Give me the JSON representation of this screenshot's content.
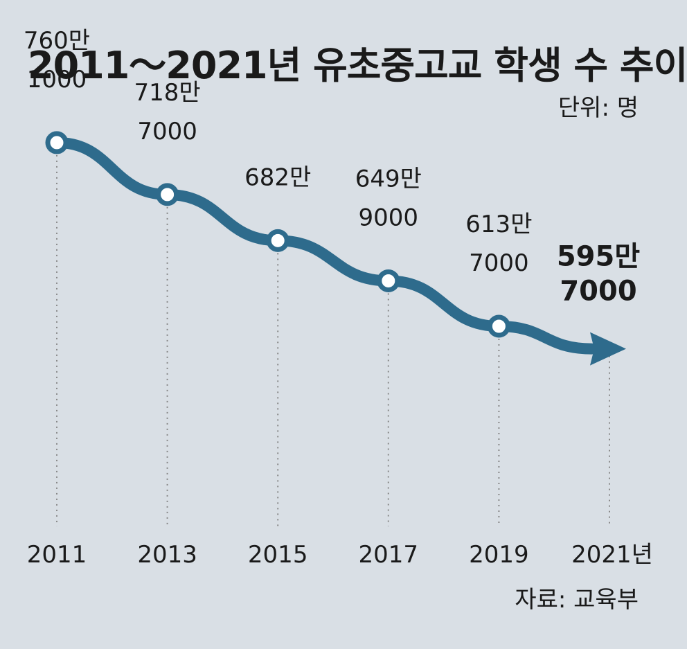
{
  "title": "2011～2021년 유초중고교 학생 수 추이",
  "unit": "단위: 명",
  "source": "자료: 교육부",
  "colors": {
    "background": "#d9dfe5",
    "line": "#2e6b8c",
    "marker_fill": "#ffffff",
    "guide": "#888888",
    "text": "#1a1a1a"
  },
  "chart_data": {
    "type": "line",
    "title": "2011～2021년 유초중고교 학생 수 추이",
    "unit": "단위: 명",
    "x": [
      "2011",
      "2013",
      "2015",
      "2017",
      "2019",
      "2021년"
    ],
    "series": [
      {
        "values": [
          7601000,
          7187000,
          6820000,
          6499000,
          6137000,
          5957000
        ],
        "labels": [
          [
            "760만",
            "1000"
          ],
          [
            "718만",
            "7000"
          ],
          [
            "682만",
            ""
          ],
          [
            "649만",
            "9000"
          ],
          [
            "613만",
            "7000"
          ],
          [
            "595만",
            "7000"
          ]
        ]
      }
    ],
    "ylim": [
      5800000,
      7700000
    ],
    "grid": false,
    "legend": "none"
  }
}
